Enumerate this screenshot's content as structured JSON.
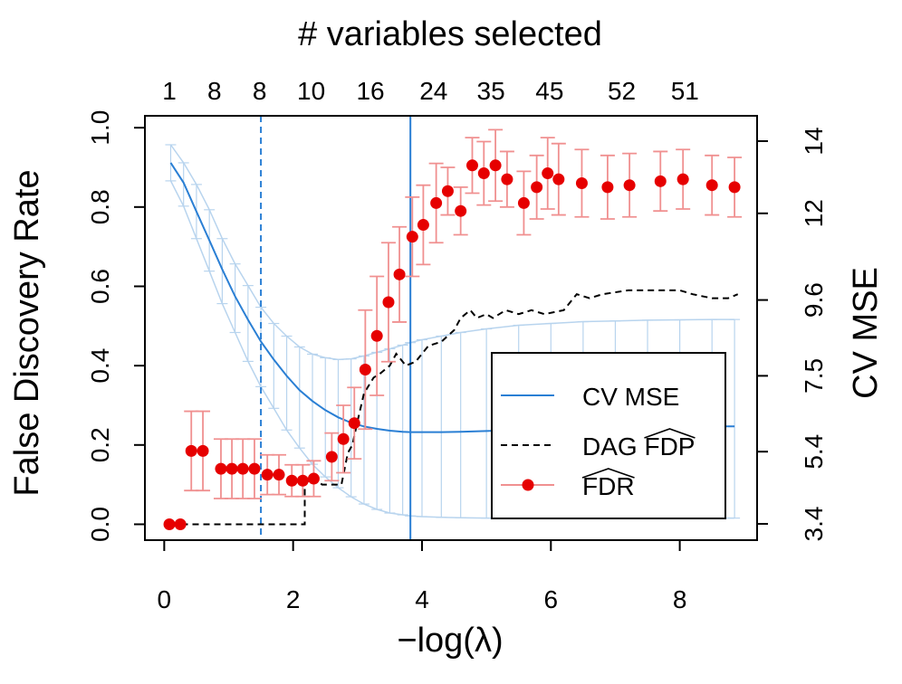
{
  "chart_data": {
    "type": "line",
    "top_label": "# variables selected",
    "xlabel": "−log(λ)",
    "ylabel_left": "False Discovery Rate",
    "ylabel_right": "CV MSE",
    "xlim": [
      -0.3,
      9.2
    ],
    "ylim_left": [
      -0.04,
      1.03
    ],
    "ylim_right": [
      3.4,
      14
    ],
    "x_ticks": [
      "0",
      "2",
      "4",
      "6",
      "8"
    ],
    "left_ticks": [
      "0.0",
      "0.2",
      "0.4",
      "0.6",
      "0.8",
      "1.0"
    ],
    "right_ticks": [
      "3.4",
      "5.4",
      "7.5",
      "9.6",
      "12",
      "14"
    ],
    "top_ticks": [
      {
        "x": 0.08,
        "label": "1"
      },
      {
        "x": 0.78,
        "label": "8"
      },
      {
        "x": 1.48,
        "label": "8"
      },
      {
        "x": 2.28,
        "label": "10"
      },
      {
        "x": 3.2,
        "label": "16"
      },
      {
        "x": 4.18,
        "label": "24"
      },
      {
        "x": 5.07,
        "label": "35"
      },
      {
        "x": 5.98,
        "label": "45"
      },
      {
        "x": 7.1,
        "label": "52"
      },
      {
        "x": 8.08,
        "label": "51"
      }
    ],
    "vlines": [
      {
        "x": 1.5,
        "style": "dashed",
        "color": "#2a7fd4"
      },
      {
        "x": 3.82,
        "style": "solid",
        "color": "#2a7fd4"
      }
    ],
    "legend": {
      "placement": "bottom-right",
      "entries": [
        {
          "label": "CV MSE",
          "style": "line",
          "color": "#2a7fd4"
        },
        {
          "label": "DAG FDP",
          "hat_word": "FDP",
          "style": "dashed",
          "color": "#000000"
        },
        {
          "label": "FDR",
          "hat_word": "FDR",
          "style": "point",
          "color": "#e60000"
        }
      ]
    },
    "series": [
      {
        "name": "CV MSE",
        "axis": "right",
        "color": "#2a7fd4",
        "band_color": "#b8d4ee",
        "x": [
          0.1,
          0.3,
          0.5,
          0.7,
          0.9,
          1.1,
          1.3,
          1.5,
          1.7,
          1.9,
          2.1,
          2.3,
          2.5,
          2.7,
          2.9,
          3.1,
          3.3,
          3.5,
          3.7,
          3.82,
          4.0,
          4.3,
          4.6,
          5.0,
          5.5,
          6.0,
          6.5,
          7.0,
          7.5,
          8.0,
          8.5,
          8.85
        ],
        "y": [
          13.4,
          12.85,
          12.05,
          11.25,
          10.45,
          9.7,
          9.05,
          8.45,
          7.95,
          7.5,
          7.1,
          6.8,
          6.55,
          6.35,
          6.2,
          6.1,
          6.03,
          5.98,
          5.95,
          5.94,
          5.94,
          5.94,
          5.95,
          5.97,
          6.0,
          6.03,
          6.05,
          6.07,
          6.08,
          6.09,
          6.1,
          6.1
        ],
        "band_low": [
          12.9,
          12.2,
          11.3,
          10.4,
          9.5,
          8.7,
          7.9,
          7.2,
          6.6,
          6.0,
          5.5,
          5.05,
          4.7,
          4.4,
          4.15,
          3.95,
          3.8,
          3.7,
          3.65,
          3.62,
          3.6,
          3.58,
          3.57,
          3.56,
          3.56,
          3.56,
          3.56,
          3.56,
          3.56,
          3.56,
          3.56,
          3.56
        ],
        "band_high": [
          13.9,
          13.4,
          12.8,
          12.1,
          11.3,
          10.6,
          10.0,
          9.4,
          8.95,
          8.6,
          8.3,
          8.1,
          8.0,
          7.95,
          7.97,
          8.05,
          8.15,
          8.25,
          8.35,
          8.42,
          8.5,
          8.6,
          8.7,
          8.8,
          8.9,
          8.95,
          9.0,
          9.02,
          9.04,
          9.05,
          9.06,
          9.06
        ]
      },
      {
        "name": "DAG FDP",
        "axis": "left",
        "color": "#000000",
        "points": [
          [
            0.1,
            0.0
          ],
          [
            2.18,
            0.0
          ],
          [
            2.18,
            0.1
          ],
          [
            2.3,
            0.12
          ],
          [
            2.45,
            0.1
          ],
          [
            2.75,
            0.1
          ],
          [
            2.85,
            0.18
          ],
          [
            2.92,
            0.2
          ],
          [
            3.0,
            0.26
          ],
          [
            3.1,
            0.33
          ],
          [
            3.25,
            0.37
          ],
          [
            3.35,
            0.38
          ],
          [
            3.5,
            0.4
          ],
          [
            3.6,
            0.43
          ],
          [
            3.75,
            0.4
          ],
          [
            3.9,
            0.41
          ],
          [
            4.1,
            0.45
          ],
          [
            4.3,
            0.46
          ],
          [
            4.5,
            0.49
          ],
          [
            4.6,
            0.52
          ],
          [
            4.75,
            0.54
          ],
          [
            4.85,
            0.52
          ],
          [
            5.0,
            0.53
          ],
          [
            5.1,
            0.52
          ],
          [
            5.3,
            0.54
          ],
          [
            5.5,
            0.53
          ],
          [
            5.7,
            0.54
          ],
          [
            5.9,
            0.53
          ],
          [
            6.2,
            0.54
          ],
          [
            6.4,
            0.58
          ],
          [
            6.6,
            0.57
          ],
          [
            6.8,
            0.58
          ],
          [
            7.2,
            0.59
          ],
          [
            7.6,
            0.59
          ],
          [
            8.0,
            0.59
          ],
          [
            8.2,
            0.58
          ],
          [
            8.5,
            0.57
          ],
          [
            8.75,
            0.57
          ],
          [
            8.9,
            0.58
          ]
        ]
      },
      {
        "name": "FDR",
        "axis": "left",
        "color": "#e60000",
        "err_color": "#f09090",
        "x": [
          0.08,
          0.25,
          0.42,
          0.6,
          0.88,
          1.05,
          1.22,
          1.4,
          1.6,
          1.78,
          1.98,
          2.15,
          2.32,
          2.6,
          2.78,
          2.95,
          3.12,
          3.3,
          3.48,
          3.65,
          3.85,
          4.02,
          4.22,
          4.4,
          4.6,
          4.78,
          4.96,
          5.14,
          5.32,
          5.58,
          5.78,
          5.95,
          6.12,
          6.48,
          6.88,
          7.22,
          7.7,
          8.05,
          8.5,
          8.85
        ],
        "y": [
          0.0,
          0.0,
          0.185,
          0.185,
          0.14,
          0.14,
          0.14,
          0.14,
          0.125,
          0.125,
          0.11,
          0.11,
          0.115,
          0.17,
          0.215,
          0.255,
          0.39,
          0.475,
          0.56,
          0.63,
          0.725,
          0.755,
          0.81,
          0.84,
          0.79,
          0.905,
          0.885,
          0.905,
          0.87,
          0.81,
          0.85,
          0.885,
          0.87,
          0.86,
          0.85,
          0.855,
          0.865,
          0.87,
          0.855,
          0.85
        ],
        "err": [
          0.0,
          0.0,
          0.1,
          0.1,
          0.075,
          0.075,
          0.075,
          0.075,
          0.05,
          0.05,
          0.04,
          0.04,
          0.045,
          0.06,
          0.085,
          0.09,
          0.15,
          0.15,
          0.15,
          0.12,
          0.1,
          0.1,
          0.1,
          0.06,
          0.06,
          0.07,
          0.08,
          0.09,
          0.07,
          0.08,
          0.08,
          0.09,
          0.09,
          0.085,
          0.08,
          0.08,
          0.075,
          0.075,
          0.075,
          0.075
        ]
      }
    ]
  }
}
